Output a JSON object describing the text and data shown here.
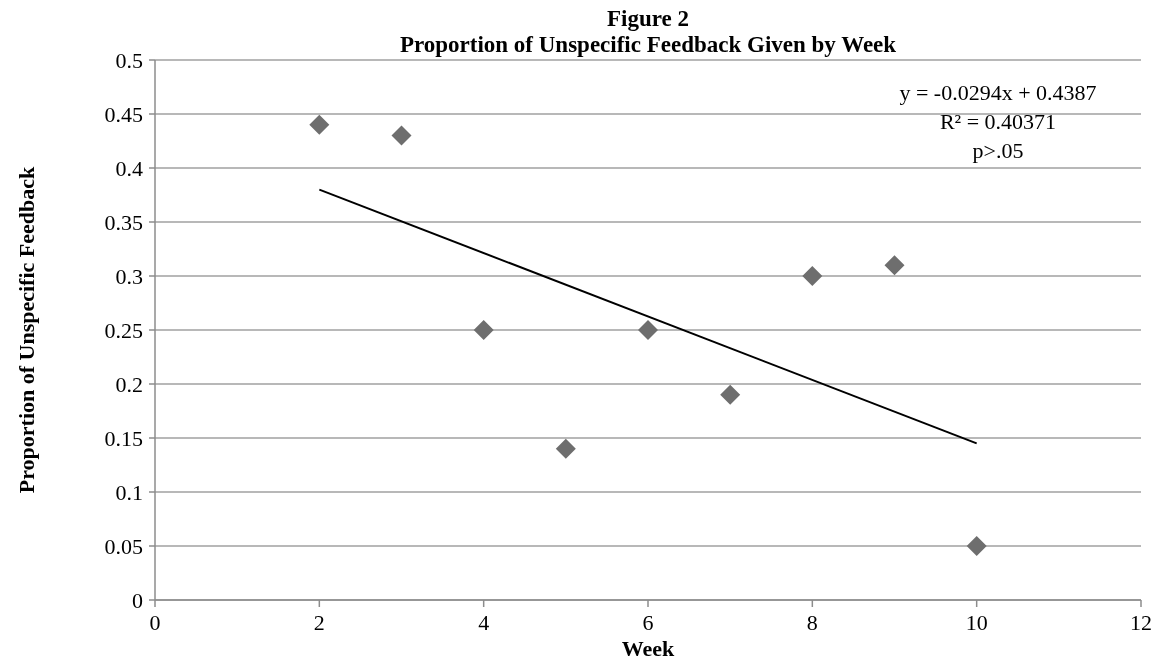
{
  "chart_data": {
    "type": "scatter",
    "title": "Figure 2",
    "subtitle": "Proportion of Unspecific Feedback Given by Week",
    "xlabel": "Week",
    "ylabel": "Proportion of Unspecific Feedback",
    "series": [
      {
        "color": "#6e6e6e",
        "marker": "diamond",
        "x": [
          2,
          3,
          4,
          5,
          6,
          7,
          8,
          9,
          10
        ],
        "values": [
          0.44,
          0.43,
          0.25,
          0.14,
          0.25,
          0.19,
          0.3,
          0.31,
          0.05
        ]
      },
      {
        "type": "line",
        "color": "#000000",
        "marker": "none",
        "x": [
          2,
          10
        ],
        "values": [
          0.38,
          0.145
        ]
      }
    ],
    "xlim": [
      0,
      12
    ],
    "xticks": [
      0,
      2,
      4,
      6,
      8,
      10,
      12
    ],
    "ylim": [
      0,
      0.5
    ],
    "yticks": [
      0,
      0.05,
      0.1,
      0.15,
      0.2,
      0.25,
      0.3,
      0.35,
      0.4,
      0.45,
      0.5
    ],
    "grid": "y",
    "annotations": [
      "y = -0.0294x + 0.4387",
      "R² = 0.40371",
      "p>.05"
    ]
  }
}
